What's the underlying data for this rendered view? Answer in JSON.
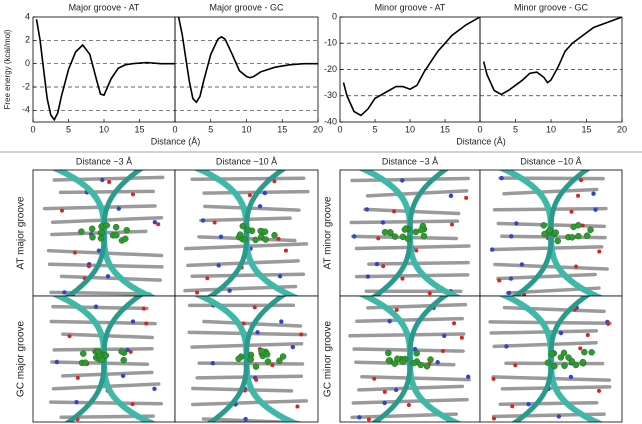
{
  "chart_data": [
    {
      "type": "line",
      "ylabel": "Free energy (kcal/mol)",
      "xlabel": "Distance (Å)",
      "xlim": [
        0,
        20
      ],
      "ylim": [
        -5,
        4
      ],
      "yticks": [
        -4,
        -2,
        0,
        2,
        4
      ],
      "hlines": [
        -4,
        -2,
        0,
        2
      ],
      "color": "#000000",
      "panels": [
        {
          "title": "Major groove - AT",
          "xticks": [
            0,
            5,
            10,
            15
          ],
          "x": [
            0.5,
            1,
            1.5,
            2,
            2.5,
            3,
            3.5,
            4,
            5,
            6,
            7,
            8,
            9,
            9.5,
            10,
            11,
            12,
            13,
            14,
            16,
            18,
            20
          ],
          "values": [
            3.8,
            2,
            -0.5,
            -3,
            -4.4,
            -4.8,
            -4.2,
            -2.8,
            -0.5,
            1,
            1.6,
            0.8,
            -1.5,
            -2.6,
            -2.7,
            -1.3,
            -0.4,
            -0.1,
            0,
            0.1,
            0,
            0
          ]
        },
        {
          "title": "Major groove - GC",
          "xticks": [
            0,
            5,
            10,
            15,
            20
          ],
          "x": [
            0.5,
            1,
            1.5,
            2,
            2.5,
            3,
            3.5,
            4,
            5,
            6,
            6.5,
            7,
            8,
            9,
            10,
            10.5,
            11,
            12,
            14,
            16,
            18,
            20
          ],
          "values": [
            4,
            2.5,
            0.5,
            -1.5,
            -3,
            -3.3,
            -2.8,
            -1.5,
            0.8,
            2.1,
            2.3,
            2.1,
            0.8,
            -0.6,
            -1.1,
            -1.2,
            -1.1,
            -0.7,
            -0.3,
            -0.1,
            0,
            0
          ]
        }
      ]
    },
    {
      "type": "line",
      "xlabel": "Distance (Å)",
      "xlim": [
        0,
        20
      ],
      "ylim": [
        -40,
        0
      ],
      "yticks": [
        -40,
        -30,
        -20,
        -10,
        0
      ],
      "hlines": [
        -30,
        -20,
        -10
      ],
      "color": "#000000",
      "panels": [
        {
          "title": "Minor groove - AT",
          "xticks": [
            0,
            5,
            10,
            15
          ],
          "x": [
            0.5,
            1,
            2,
            3,
            4,
            5,
            6,
            7,
            8,
            9,
            10,
            11,
            12,
            13,
            14,
            15,
            16,
            17,
            18,
            19,
            20
          ],
          "values": [
            -25,
            -30,
            -36,
            -37.5,
            -35,
            -31,
            -29.5,
            -28,
            -26.5,
            -26.5,
            -27.5,
            -26,
            -21,
            -17,
            -13,
            -10,
            -7,
            -5,
            -3,
            -1.5,
            0
          ]
        },
        {
          "title": "Minor groove - GC",
          "xticks": [
            0,
            5,
            10,
            15,
            20
          ],
          "x": [
            0.5,
            1,
            2,
            3,
            4,
            5,
            6,
            7,
            8,
            9,
            9.5,
            10,
            11,
            12,
            13,
            14,
            16,
            18,
            20
          ],
          "values": [
            -17,
            -22,
            -28,
            -29.5,
            -28,
            -26,
            -24,
            -21.5,
            -21,
            -23,
            -25,
            -24,
            -19,
            -13,
            -10,
            -8,
            -4,
            -2,
            0
          ]
        }
      ]
    }
  ],
  "structures": [
    {
      "columns": [
        "Distance ~3 Å",
        "Distance ~10 Å"
      ],
      "rows": [
        "AT major groove",
        "GC major groove"
      ]
    },
    {
      "columns": [
        "Distance ~3 Å",
        "Distance ~10 Å"
      ],
      "rows": [
        "AT minor groove",
        "GC minor groove"
      ]
    }
  ]
}
